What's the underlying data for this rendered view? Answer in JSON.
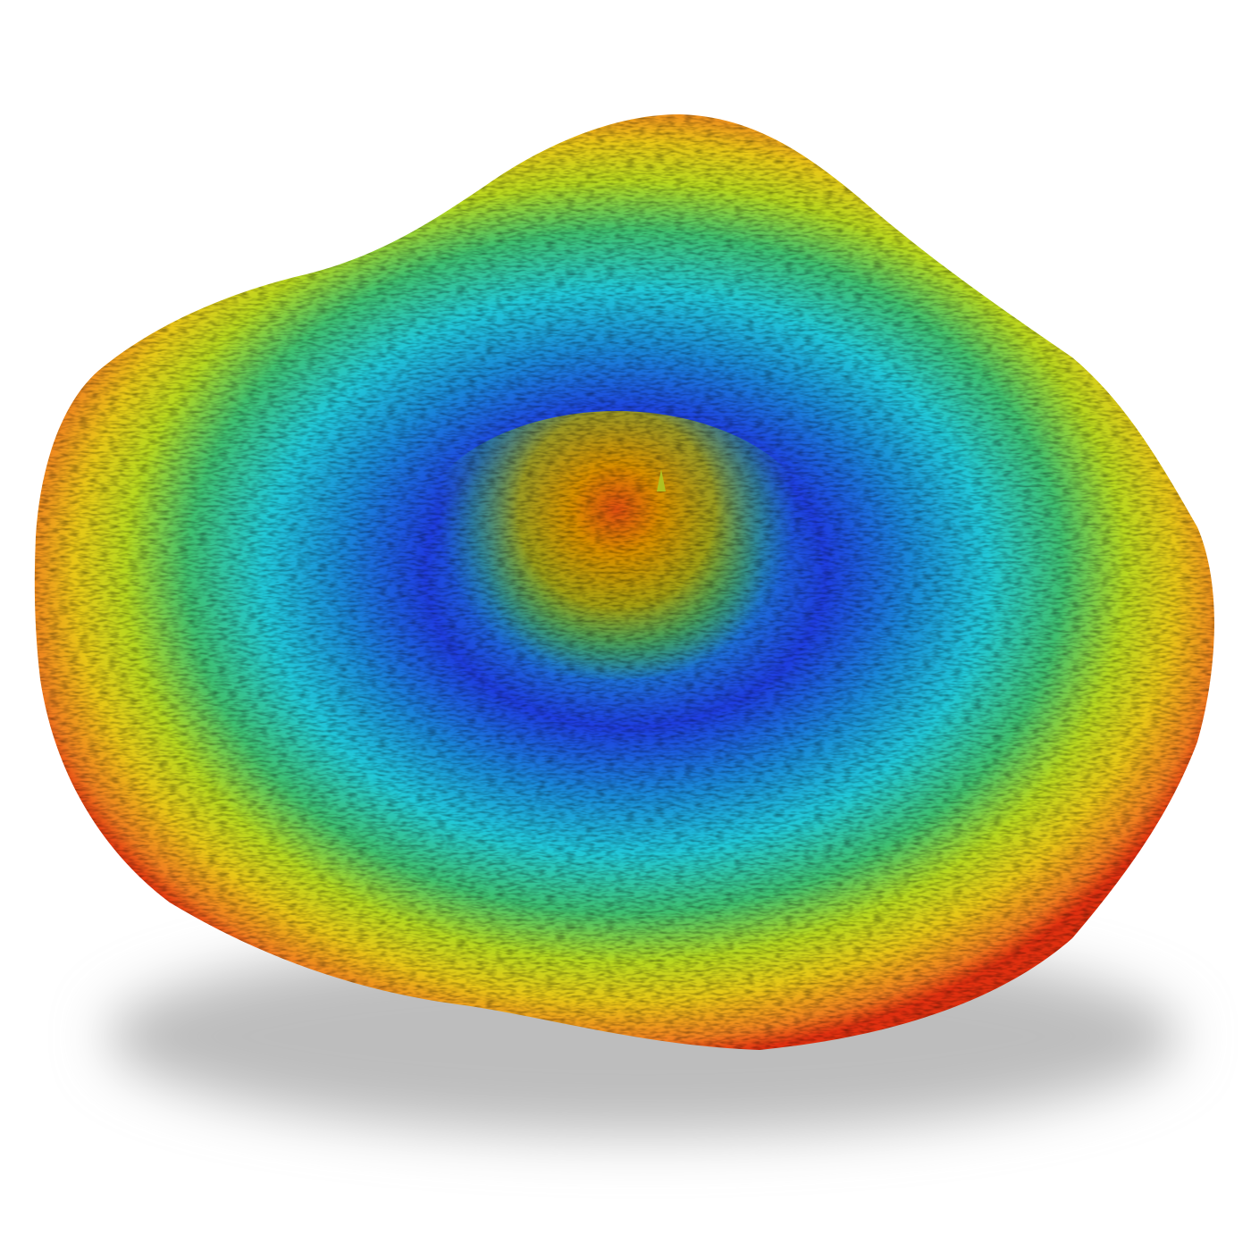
{
  "scene": {
    "background_color": "#ffffff",
    "shadow_color": "#bdbdbd",
    "colormap": [
      "#e03010",
      "#f09020",
      "#d8d820",
      "#40c060",
      "#20d0d0",
      "#1a8ad8",
      "#1e3ee0",
      "#20a090",
      "#d8b000",
      "#e05a10"
    ]
  }
}
